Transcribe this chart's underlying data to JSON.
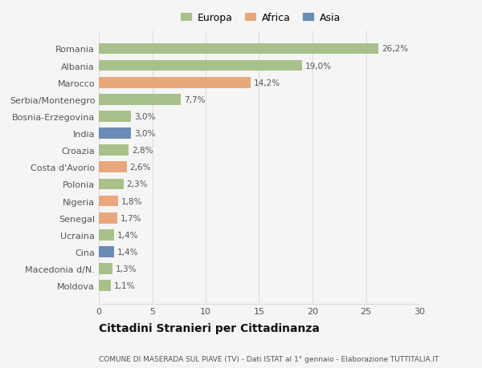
{
  "categories": [
    "Moldova",
    "Macedonia d/N.",
    "Cina",
    "Ucraina",
    "Senegal",
    "Nigeria",
    "Polonia",
    "Costa d'Avorio",
    "Croazia",
    "India",
    "Bosnia-Erzegovina",
    "Serbia/Montenegro",
    "Marocco",
    "Albania",
    "Romania"
  ],
  "values": [
    1.1,
    1.3,
    1.4,
    1.4,
    1.7,
    1.8,
    2.3,
    2.6,
    2.8,
    3.0,
    3.0,
    7.7,
    14.2,
    19.0,
    26.2
  ],
  "labels": [
    "1,1%",
    "1,3%",
    "1,4%",
    "1,4%",
    "1,7%",
    "1,8%",
    "2,3%",
    "2,6%",
    "2,8%",
    "3,0%",
    "3,0%",
    "7,7%",
    "14,2%",
    "19,0%",
    "26,2%"
  ],
  "continents": [
    "Europa",
    "Europa",
    "Asia",
    "Europa",
    "Africa",
    "Africa",
    "Europa",
    "Africa",
    "Europa",
    "Asia",
    "Europa",
    "Europa",
    "Africa",
    "Europa",
    "Europa"
  ],
  "colors": {
    "Europa": "#a8c08a",
    "Africa": "#e8a87c",
    "Asia": "#6b8db5"
  },
  "legend_labels": [
    "Europa",
    "Africa",
    "Asia"
  ],
  "legend_colors": [
    "#a8c08a",
    "#e8a87c",
    "#6b8db5"
  ],
  "xlim": [
    0,
    30
  ],
  "xticks": [
    0,
    5,
    10,
    15,
    20,
    25,
    30
  ],
  "title": "Cittadini Stranieri per Cittadinanza",
  "subtitle": "COMUNE DI MASERADA SUL PIAVE (TV) - Dati ISTAT al 1° gennaio - Elaborazione TUTTITALIA.IT",
  "background_color": "#f5f5f5",
  "grid_color": "#dddddd",
  "bar_height": 0.65
}
